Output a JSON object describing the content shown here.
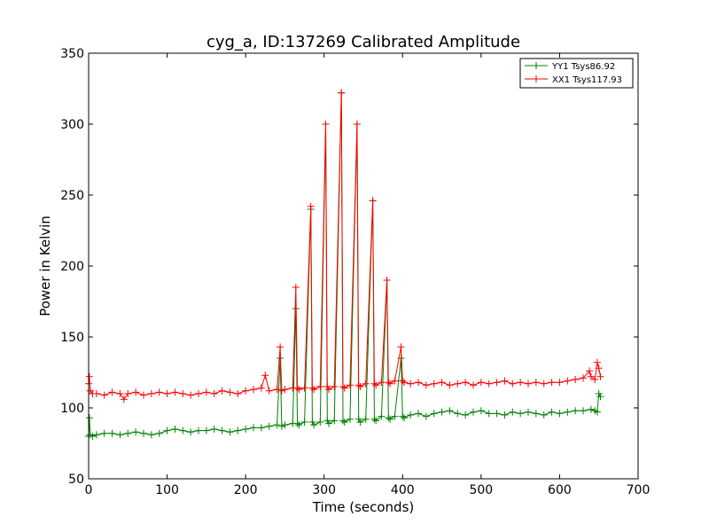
{
  "chart_data": {
    "type": "line",
    "title": "cyg_a, ID:137269 Calibrated Amplitude",
    "xlabel": "Time (seconds)",
    "ylabel": "Power in Kelvin",
    "xlim": [
      0,
      700
    ],
    "ylim": [
      50,
      350
    ],
    "xticks": [
      0,
      100,
      200,
      300,
      400,
      500,
      600,
      700
    ],
    "yticks": [
      50,
      100,
      150,
      200,
      250,
      300,
      350
    ],
    "grid": false,
    "legend_position": "top-right",
    "marker": "+",
    "series": [
      {
        "name": "YY1 Tsys86.92",
        "color": "#008000",
        "x": [
          0,
          1,
          2,
          5,
          10,
          20,
          30,
          40,
          50,
          60,
          70,
          80,
          90,
          100,
          110,
          120,
          130,
          140,
          150,
          160,
          170,
          180,
          190,
          200,
          210,
          220,
          230,
          240,
          244,
          246,
          250,
          260,
          264,
          266,
          268,
          275,
          283,
          285,
          287,
          295,
          302,
          304,
          306,
          313,
          322,
          324,
          326,
          333,
          342,
          344,
          346,
          353,
          362,
          364,
          366,
          373,
          380,
          382,
          384,
          390,
          398,
          400,
          402,
          410,
          420,
          430,
          440,
          450,
          460,
          470,
          480,
          490,
          500,
          510,
          520,
          530,
          540,
          550,
          560,
          570,
          580,
          590,
          600,
          610,
          620,
          630,
          640,
          645,
          648,
          650,
          652
        ],
        "y": [
          80,
          93,
          81,
          80,
          81,
          82,
          82,
          81,
          82,
          83,
          82,
          81,
          82,
          84,
          85,
          84,
          83,
          84,
          84,
          85,
          84,
          83,
          84,
          85,
          86,
          86,
          87,
          88,
          135,
          87,
          88,
          89,
          170,
          89,
          88,
          90,
          240,
          90,
          88,
          90,
          300,
          91,
          89,
          91,
          322,
          91,
          90,
          92,
          300,
          92,
          90,
          92,
          246,
          92,
          91,
          94,
          190,
          93,
          92,
          94,
          135,
          94,
          93,
          95,
          96,
          94,
          96,
          97,
          98,
          96,
          95,
          97,
          98,
          96,
          96,
          95,
          97,
          96,
          97,
          96,
          95,
          97,
          96,
          97,
          98,
          98,
          99,
          98,
          97,
          110,
          108
        ]
      },
      {
        "name": "XX1 Tsys117.93",
        "color": "#ff0000",
        "x": [
          0,
          1,
          2,
          5,
          10,
          20,
          30,
          40,
          45,
          50,
          60,
          70,
          80,
          90,
          100,
          110,
          120,
          130,
          140,
          150,
          160,
          170,
          180,
          190,
          200,
          210,
          220,
          225,
          230,
          240,
          244,
          246,
          250,
          260,
          264,
          266,
          268,
          275,
          283,
          285,
          287,
          295,
          302,
          304,
          306,
          313,
          322,
          324,
          326,
          333,
          342,
          344,
          346,
          353,
          362,
          364,
          366,
          373,
          380,
          382,
          384,
          390,
          398,
          400,
          402,
          410,
          420,
          430,
          440,
          450,
          460,
          470,
          480,
          490,
          500,
          510,
          520,
          530,
          540,
          550,
          560,
          570,
          580,
          590,
          600,
          610,
          620,
          630,
          638,
          640,
          645,
          648,
          650,
          652
        ],
        "y": [
          117,
          122,
          112,
          110,
          110,
          109,
          111,
          110,
          106,
          110,
          111,
          109,
          110,
          111,
          110,
          111,
          110,
          109,
          110,
          111,
          110,
          112,
          111,
          110,
          112,
          113,
          114,
          123,
          112,
          113,
          143,
          112,
          113,
          114,
          185,
          114,
          113,
          114,
          242,
          114,
          113,
          115,
          300,
          115,
          113,
          115,
          322,
          115,
          114,
          116,
          300,
          116,
          115,
          117,
          246,
          117,
          116,
          118,
          190,
          118,
          117,
          119,
          143,
          119,
          118,
          117,
          118,
          116,
          117,
          118,
          116,
          117,
          118,
          116,
          118,
          117,
          118,
          119,
          117,
          118,
          117,
          118,
          117,
          118,
          118,
          119,
          120,
          121,
          126,
          122,
          120,
          132,
          128,
          122
        ]
      }
    ]
  }
}
